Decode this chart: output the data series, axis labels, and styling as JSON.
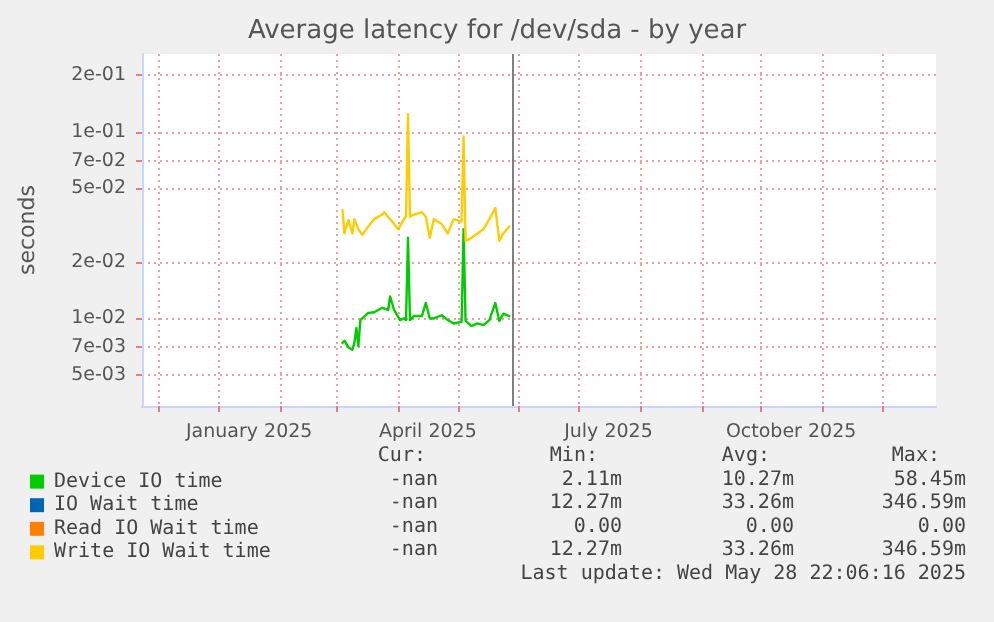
{
  "chart_data": {
    "type": "line",
    "title": "Average latency for /dev/sda - by year",
    "ylabel": "seconds",
    "log": "y",
    "grid": true,
    "legend": "bottom",
    "marker": "none",
    "line_style": "solid",
    "xlim": [
      "2024-11-23",
      "2025-12-28"
    ],
    "xticks": [
      {
        "value": "2024-12-01",
        "label": null
      },
      {
        "value": "2025-01-01",
        "label": null
      },
      {
        "value": "2025-01-16",
        "label": "January 2025"
      },
      {
        "value": "2025-02-01",
        "label": null
      },
      {
        "value": "2025-03-01",
        "label": null
      },
      {
        "value": "2025-04-01",
        "label": null
      },
      {
        "value": "2025-04-16",
        "label": "April 2025"
      },
      {
        "value": "2025-05-01",
        "label": null
      },
      {
        "value": "2025-06-01",
        "label": null
      },
      {
        "value": "2025-07-01",
        "label": null
      },
      {
        "value": "2025-07-16",
        "label": "July 2025"
      },
      {
        "value": "2025-08-01",
        "label": null
      },
      {
        "value": "2025-09-01",
        "label": null
      },
      {
        "value": "2025-10-01",
        "label": null
      },
      {
        "value": "2025-10-16",
        "label": "October 2025"
      },
      {
        "value": "2025-11-01",
        "label": null
      },
      {
        "value": "2025-12-01",
        "label": null
      }
    ],
    "ylim": [
      0.0034,
      0.26
    ],
    "yticks": [
      {
        "value": 0.005,
        "label": "5e-03"
      },
      {
        "value": 0.007,
        "label": "7e-03"
      },
      {
        "value": 0.01,
        "label": "1e-02"
      },
      {
        "value": 0.02,
        "label": "2e-02"
      },
      {
        "value": 0.05,
        "label": "5e-02"
      },
      {
        "value": 0.07,
        "label": "7e-02"
      },
      {
        "value": 0.1,
        "label": "1e-01"
      },
      {
        "value": 0.2,
        "label": "2e-01"
      }
    ],
    "ref_lines": [
      {
        "axis": "x",
        "value": "2025-05-28T22:06",
        "color": "#808080"
      }
    ],
    "series": [
      {
        "name": "Device IO time",
        "color": "#00cc00",
        "x": [
          "2025-03-04",
          "2025-03-05",
          "2025-03-07",
          "2025-03-09",
          "2025-03-10",
          "2025-03-11",
          "2025-03-12",
          "2025-03-13",
          "2025-03-17",
          "2025-03-20",
          "2025-03-24",
          "2025-03-27",
          "2025-03-28",
          "2025-03-30",
          "2025-04-02",
          "2025-04-04",
          "2025-04-05",
          "2025-04-06",
          "2025-04-07",
          "2025-04-09",
          "2025-04-13",
          "2025-04-15",
          "2025-04-17",
          "2025-04-19",
          "2025-04-23",
          "2025-04-26",
          "2025-04-29",
          "2025-05-03",
          "2025-05-04",
          "2025-05-05",
          "2025-05-08",
          "2025-05-11",
          "2025-05-14",
          "2025-05-17",
          "2025-05-20",
          "2025-05-22",
          "2025-05-24",
          "2025-05-27"
        ],
        "values": [
          0.0074,
          0.0076,
          0.007,
          0.0068,
          0.0074,
          0.0089,
          0.0071,
          0.0098,
          0.0107,
          0.0108,
          0.0114,
          0.0111,
          0.0131,
          0.0111,
          0.0098,
          0.01,
          0.0098,
          0.027,
          0.0098,
          0.0103,
          0.0103,
          0.0121,
          0.01,
          0.01,
          0.0104,
          0.0098,
          0.0094,
          0.0096,
          0.03,
          0.0097,
          0.0091,
          0.0094,
          0.0092,
          0.0098,
          0.0121,
          0.0097,
          0.0106,
          0.0103
        ]
      },
      {
        "name": "IO Wait time",
        "color": "#0066b3"
      },
      {
        "name": "Read IO Wait time",
        "color": "#ff8000"
      },
      {
        "name": "Write IO Wait time",
        "color": "#ffcc00",
        "x": [
          "2025-03-04",
          "2025-03-05",
          "2025-03-07",
          "2025-03-09",
          "2025-03-10",
          "2025-03-12",
          "2025-03-14",
          "2025-03-17",
          "2025-03-20",
          "2025-03-24",
          "2025-03-25",
          "2025-03-29",
          "2025-04-01",
          "2025-04-04",
          "2025-04-05",
          "2025-04-06",
          "2025-04-07",
          "2025-04-09",
          "2025-04-13",
          "2025-04-15",
          "2025-04-17",
          "2025-04-19",
          "2025-04-23",
          "2025-04-26",
          "2025-04-29",
          "2025-05-03",
          "2025-05-04",
          "2025-05-05",
          "2025-05-08",
          "2025-05-11",
          "2025-05-14",
          "2025-05-17",
          "2025-05-20",
          "2025-05-22",
          "2025-05-24",
          "2025-05-27"
        ],
        "values": [
          0.038,
          0.0285,
          0.0336,
          0.0285,
          0.034,
          0.03,
          0.028,
          0.031,
          0.034,
          0.036,
          0.037,
          0.033,
          0.03,
          0.034,
          0.035,
          0.124,
          0.035,
          0.036,
          0.037,
          0.035,
          0.027,
          0.034,
          0.032,
          0.0285,
          0.034,
          0.033,
          0.094,
          0.026,
          0.027,
          0.0285,
          0.03,
          0.034,
          0.039,
          0.026,
          0.0285,
          0.031
        ]
      }
    ],
    "annotations": [
      "Cur:",
      "Min:",
      "Avg:",
      "Max:",
      "-nan",
      "2.11m",
      "10.27m",
      "58.45m",
      "-nan",
      "12.27m",
      "33.26m",
      "346.59m",
      "-nan",
      "0.00",
      "0.00",
      "0.00",
      "-nan",
      "12.27m",
      "33.26m",
      "346.59m",
      "Last update: Wed May 28 22:06:16 2025"
    ]
  }
}
